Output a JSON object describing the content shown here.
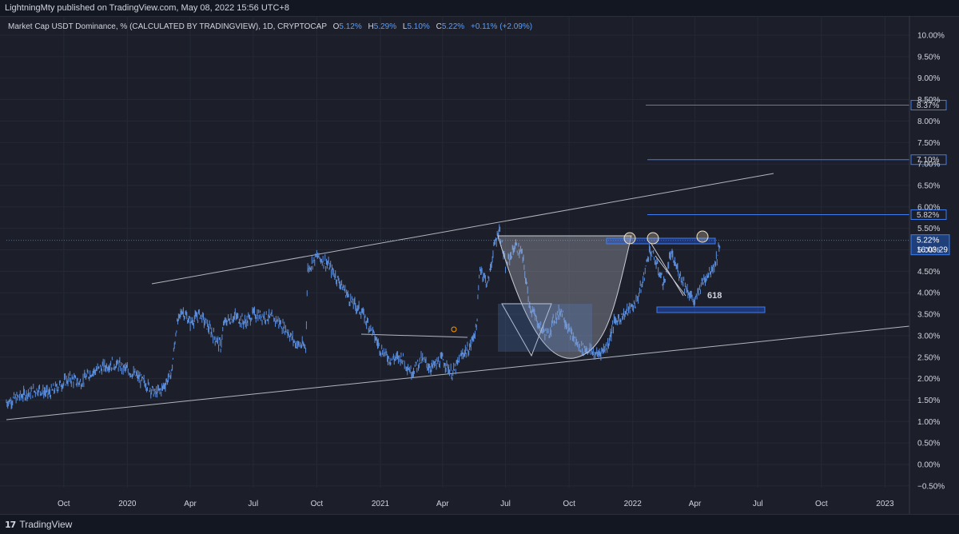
{
  "header": {
    "publisher": "LightningMty published on TradingView.com, May 08, 2022 15:56 UTC+8"
  },
  "footer": {
    "brand": "TradingView",
    "logo_icon": "tradingview-logo-icon"
  },
  "chart_data": {
    "type": "line",
    "style": "ohlc-bars",
    "title": "Market Cap USDT Dominance, % (CALCULATED BY TRADINGVIEW), 1D, CRYPTOCAP",
    "ohlc": {
      "o_label": "O",
      "o": "5.12%",
      "h_label": "H",
      "h": "5.29%",
      "l_label": "L",
      "l": "5.10%",
      "c_label": "C",
      "c": "5.22%",
      "change": "+0.11% (+2.09%)"
    },
    "x_ticks": [
      "Oct",
      "2020",
      "Apr",
      "Jul",
      "Oct",
      "2021",
      "Apr",
      "Jul",
      "Oct",
      "2022",
      "Apr",
      "Jul",
      "Oct",
      "2023"
    ],
    "y_ticks": [
      "10.00%",
      "9.50%",
      "9.00%",
      "8.50%",
      "8.00%",
      "7.50%",
      "7.00%",
      "6.50%",
      "6.00%",
      "5.50%",
      "5.00%",
      "4.50%",
      "4.00%",
      "3.50%",
      "3.00%",
      "2.50%",
      "2.00%",
      "1.50%",
      "1.00%",
      "0.50%",
      "0.00%",
      "−0.50%"
    ],
    "y_values": [
      10.0,
      9.5,
      9.0,
      8.5,
      8.0,
      7.5,
      7.0,
      6.5,
      6.0,
      5.5,
      5.0,
      4.5,
      4.0,
      3.5,
      3.0,
      2.5,
      2.0,
      1.5,
      1.0,
      0.5,
      0.0,
      -0.5
    ],
    "ylim": [
      -0.75,
      10.25
    ],
    "series": [
      {
        "values": [
          [
            "2019-07-10",
            1.45
          ],
          [
            "2019-08-01",
            1.6
          ],
          [
            "2019-08-25",
            1.75
          ],
          [
            "2019-09-10",
            1.65
          ],
          [
            "2019-09-25",
            1.85
          ],
          [
            "2019-10-10",
            2.0
          ],
          [
            "2019-10-25",
            1.9
          ],
          [
            "2019-11-10",
            2.15
          ],
          [
            "2019-11-25",
            2.25
          ],
          [
            "2019-12-10",
            2.35
          ],
          [
            "2019-12-20",
            2.3
          ],
          [
            "2020-01-01",
            2.2
          ],
          [
            "2020-01-15",
            2.05
          ],
          [
            "2020-01-30",
            1.85
          ],
          [
            "2020-02-10",
            1.65
          ],
          [
            "2020-02-20",
            1.75
          ],
          [
            "2020-03-05",
            2.15
          ],
          [
            "2020-03-12",
            3.2
          ],
          [
            "2020-03-20",
            3.6
          ],
          [
            "2020-04-01",
            3.3
          ],
          [
            "2020-04-15",
            3.5
          ],
          [
            "2020-05-01",
            3.1
          ],
          [
            "2020-05-15",
            2.75
          ],
          [
            "2020-05-20",
            3.3
          ],
          [
            "2020-06-05",
            3.45
          ],
          [
            "2020-06-20",
            3.3
          ],
          [
            "2020-07-01",
            3.5
          ],
          [
            "2020-07-20",
            3.45
          ],
          [
            "2020-08-05",
            3.35
          ],
          [
            "2020-08-20",
            3.1
          ],
          [
            "2020-09-01",
            2.8
          ],
          [
            "2020-09-15",
            2.75
          ],
          [
            "2020-09-18",
            4.55
          ],
          [
            "2020-10-01",
            4.85
          ],
          [
            "2020-10-15",
            4.7
          ],
          [
            "2020-11-01",
            4.3
          ],
          [
            "2020-11-20",
            3.8
          ],
          [
            "2020-12-05",
            3.55
          ],
          [
            "2020-12-20",
            3.1
          ],
          [
            "2021-01-01",
            2.7
          ],
          [
            "2021-01-15",
            2.45
          ],
          [
            "2021-02-01",
            2.5
          ],
          [
            "2021-02-15",
            2.15
          ],
          [
            "2021-03-01",
            2.45
          ],
          [
            "2021-03-15",
            2.25
          ],
          [
            "2021-04-01",
            2.45
          ],
          [
            "2021-04-15",
            2.1
          ],
          [
            "2021-05-01",
            2.6
          ],
          [
            "2021-05-10",
            2.7
          ],
          [
            "2021-05-20",
            3.2
          ],
          [
            "2021-05-25",
            4.6
          ],
          [
            "2021-06-05",
            4.2
          ],
          [
            "2021-06-15",
            5.1
          ],
          [
            "2021-06-22",
            5.5
          ],
          [
            "2021-07-01",
            4.6
          ],
          [
            "2021-07-15",
            5.1
          ],
          [
            "2021-07-25",
            4.9
          ],
          [
            "2021-08-05",
            3.7
          ],
          [
            "2021-08-20",
            3.2
          ],
          [
            "2021-09-01",
            3.0
          ],
          [
            "2021-09-08",
            3.35
          ],
          [
            "2021-09-20",
            3.6
          ],
          [
            "2021-10-01",
            3.1
          ],
          [
            "2021-10-15",
            2.75
          ],
          [
            "2021-11-01",
            2.65
          ],
          [
            "2021-11-10",
            2.55
          ],
          [
            "2021-11-25",
            2.75
          ],
          [
            "2021-12-05",
            3.3
          ],
          [
            "2021-12-20",
            3.5
          ],
          [
            "2022-01-05",
            3.75
          ],
          [
            "2022-01-15",
            4.2
          ],
          [
            "2022-01-25",
            5.0
          ],
          [
            "2022-02-01",
            4.8
          ],
          [
            "2022-02-15",
            4.2
          ],
          [
            "2022-02-25",
            4.9
          ],
          [
            "2022-03-05",
            4.6
          ],
          [
            "2022-03-20",
            4.1
          ],
          [
            "2022-04-01",
            3.75
          ],
          [
            "2022-04-10",
            4.2
          ],
          [
            "2022-04-20",
            4.45
          ],
          [
            "2022-05-01",
            4.7
          ],
          [
            "2022-05-05",
            5.0
          ],
          [
            "2022-05-08",
            5.22
          ]
        ]
      }
    ],
    "horizontal_levels": [
      {
        "value": 8.37,
        "label": "8.37%"
      },
      {
        "value": 7.1,
        "label": "7.10%"
      },
      {
        "value": 5.82,
        "label": "5.82%"
      }
    ],
    "last_price": {
      "value": 5.22,
      "label": "5.22%",
      "countdown": "16:03:29"
    },
    "annotations": [
      {
        "text": "618"
      }
    ],
    "colors": {
      "background": "#1c1f2a",
      "bars": "#5b8ede",
      "level": "#3d7ef0",
      "trend": "#b2b5be",
      "axis_text": "#d1d4dc",
      "ohlc_value": "#5b9cf6",
      "label_bg": "#2962ff"
    }
  }
}
